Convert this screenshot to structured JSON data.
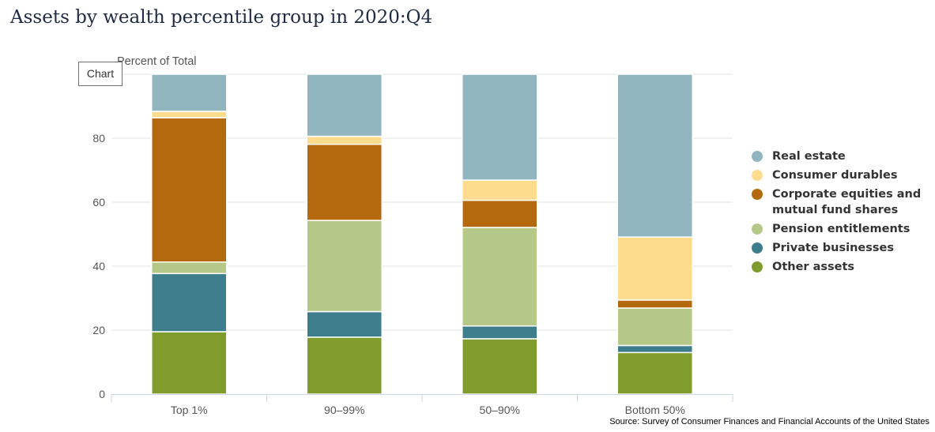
{
  "title": "Assets by wealth percentile group in 2020:Q4",
  "chart_button_label": "Chart",
  "source": "Source: Survey of Consumer Finances and Financial Accounts of the United States",
  "chart_data": {
    "type": "bar",
    "stacked": true,
    "ylabel": "Percent of Total",
    "ylim": [
      0,
      100
    ],
    "yticks": [
      0,
      20,
      40,
      60,
      80
    ],
    "grid": true,
    "legend_position": "right",
    "categories": [
      "Top 1%",
      "90–99%",
      "50–90%",
      "Bottom 50%"
    ],
    "series": [
      {
        "name": "Other assets",
        "color": "#7f9c2c",
        "values": [
          19.5,
          17.8,
          17.3,
          13.0
        ]
      },
      {
        "name": "Private businesses",
        "color": "#3e7e8c",
        "values": [
          18.2,
          8.0,
          4.0,
          2.2
        ]
      },
      {
        "name": "Pension entitlements",
        "color": "#b6c887",
        "values": [
          3.6,
          28.5,
          30.8,
          11.7
        ]
      },
      {
        "name": "Corporate equities and mutual fund shares",
        "color": "#b5690f",
        "values": [
          45.1,
          23.8,
          8.5,
          2.5
        ]
      },
      {
        "name": "Consumer durables",
        "color": "#fddd8d",
        "values": [
          2.0,
          2.5,
          6.3,
          19.7
        ]
      },
      {
        "name": "Real estate",
        "color": "#92b6bf",
        "values": [
          11.6,
          19.4,
          33.1,
          50.9
        ]
      }
    ]
  }
}
